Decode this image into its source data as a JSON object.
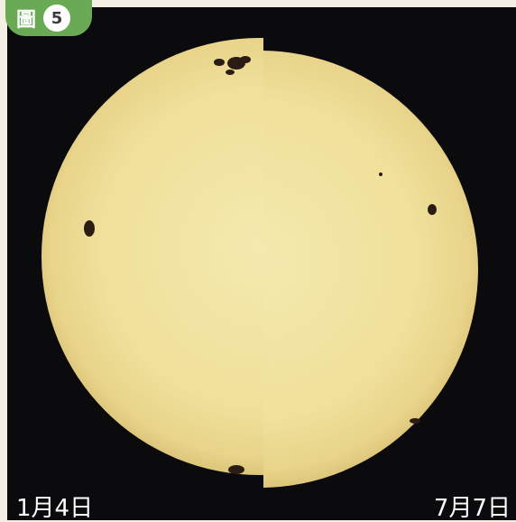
{
  "figure": {
    "label": "圖",
    "number": "5"
  },
  "captions": {
    "left": "1月4日",
    "right": "7月7日"
  },
  "colors": {
    "background": "#0b0b0d",
    "sun": "#f2e6a4",
    "badge": "#6aaa55",
    "sunspot": "#2a1c12"
  }
}
